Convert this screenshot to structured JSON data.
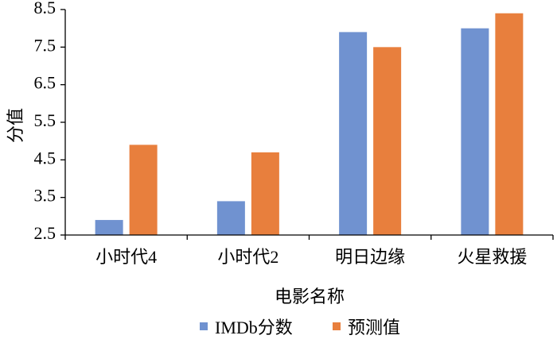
{
  "chart_data": {
    "type": "bar",
    "title": "",
    "xlabel": "电影名称",
    "ylabel": "分值",
    "ylim": [
      2.5,
      8.5
    ],
    "yticks": [
      "2.5",
      "3.5",
      "4.5",
      "5.5",
      "6.5",
      "7.5",
      "8.5"
    ],
    "categories": [
      "小时代4",
      "小时代2",
      "明日边缘",
      "火星救援"
    ],
    "series": [
      {
        "name": "IMDb分数",
        "color": "#7092d0",
        "values": [
          2.9,
          3.4,
          7.9,
          8.0
        ]
      },
      {
        "name": "预测值",
        "color": "#e87f3d",
        "values": [
          4.9,
          4.7,
          7.5,
          8.4
        ]
      }
    ],
    "grid": false,
    "legend": "bottom"
  }
}
